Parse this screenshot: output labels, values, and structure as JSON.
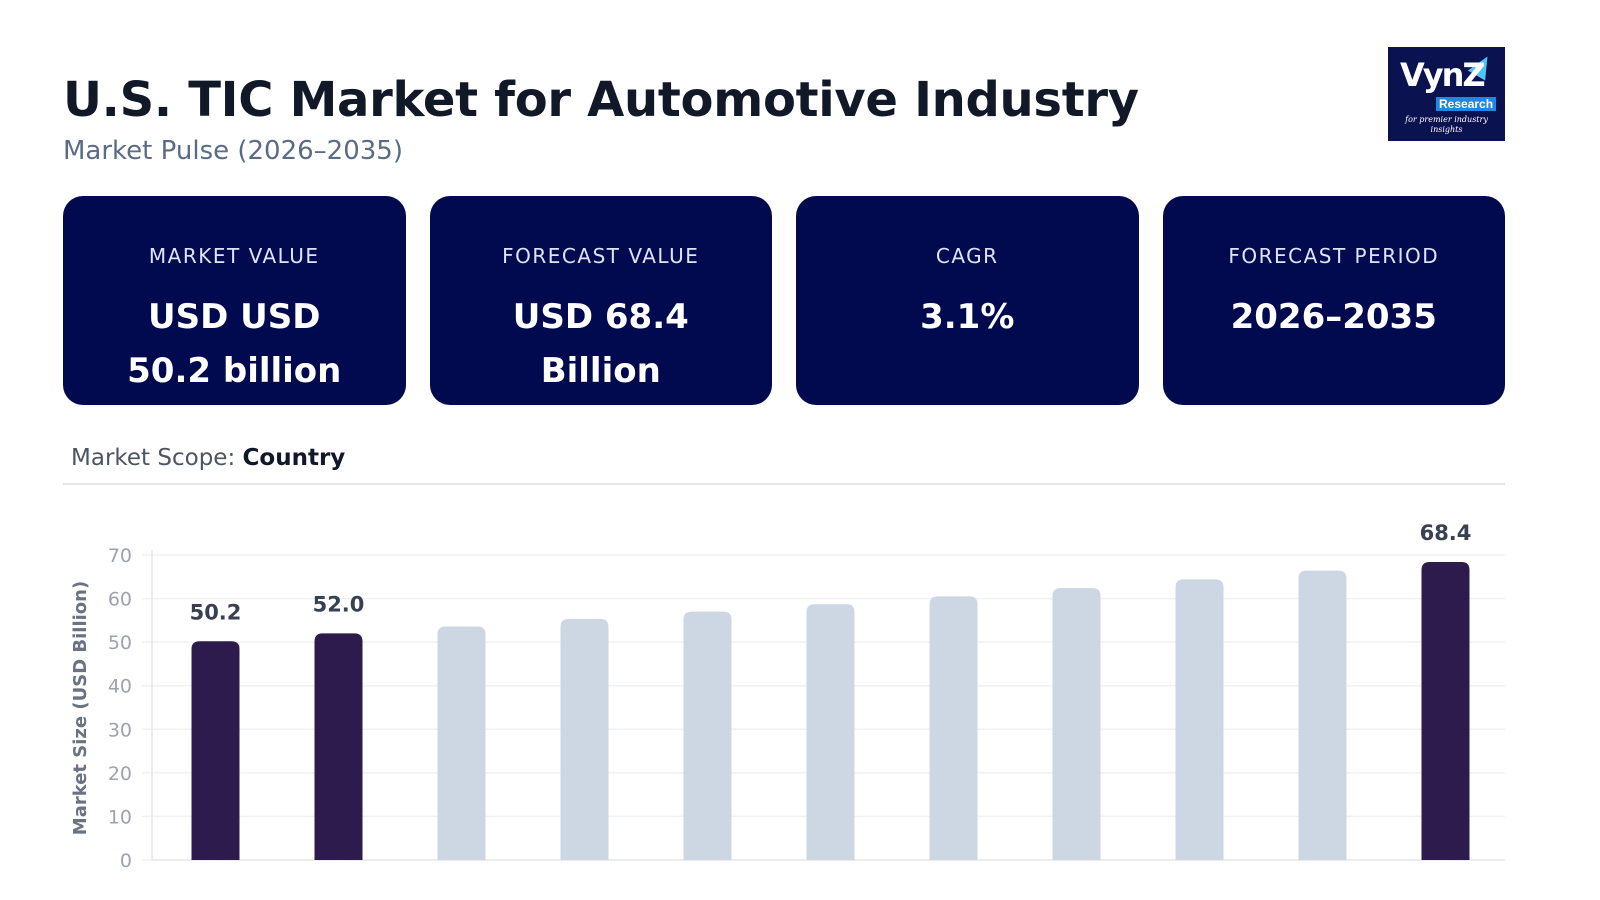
{
  "header": {
    "title": "U.S. TIC Market for Automotive Industry",
    "subtitle": "Market Pulse (2026–2035)"
  },
  "logo": {
    "text": "VynZ",
    "sub": "Research",
    "tagline": "for premier industry insights"
  },
  "cards": [
    {
      "label": "MARKET VALUE",
      "value": "USD USD 50.2 billion"
    },
    {
      "label": "FORECAST VALUE",
      "value": "USD 68.4 Billion"
    },
    {
      "label": "CAGR",
      "value": "3.1%"
    },
    {
      "label": "FORECAST PERIOD",
      "value": "2026–2035"
    }
  ],
  "scope": {
    "label": "Market Scope:",
    "value": "Country"
  },
  "colors": {
    "card": "#020a4f",
    "highlight": "#2d1b4e",
    "bar": "#cdd6e3"
  },
  "chart_data": {
    "type": "bar",
    "ylabel": "Market Size (USD Billion)",
    "ylim": [
      0,
      70
    ],
    "yticks": [
      0,
      10,
      20,
      30,
      40,
      50,
      60,
      70
    ],
    "values": [
      50.2,
      52.0,
      53.6,
      55.3,
      57.0,
      58.7,
      60.5,
      62.4,
      64.4,
      66.4,
      68.4
    ],
    "highlighted": [
      0,
      1,
      10
    ],
    "data_labels": {
      "0": "50.2",
      "1": "52.0",
      "10": "68.4"
    },
    "grid": true
  }
}
